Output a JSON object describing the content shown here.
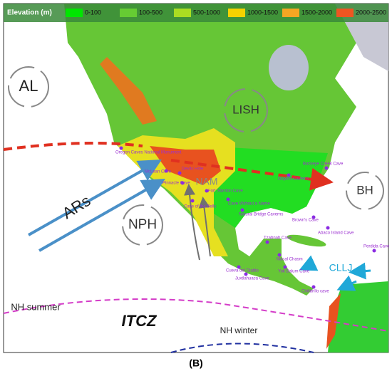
{
  "legend": {
    "title": "Elevation (m)",
    "items": [
      "0-100",
      "100-500",
      "500-1000",
      "1000-1500",
      "1500-2000",
      "2000-2500"
    ]
  },
  "labels": [
    "AL",
    "LISH",
    "BH",
    "NPH",
    "ARs",
    "NAM",
    "CLLJ",
    "ITCZ",
    "NH summer",
    "NH winter"
  ],
  "caves": [
    "Oregon Caves National Monument",
    "McLean Cave",
    "Devils Hole",
    "Pinnacle Cave",
    "Fort Stanton Cave",
    "Cave of the Bells",
    "Cave Without a Name",
    "Natural Bridge Caverns",
    "Buckeye Creek Cave",
    "Dupont Caverns",
    "Brown's Cave",
    "Abaco Island Cave",
    "Tzabnah Cave",
    "Macal Chasm",
    "Cueva del Diablo",
    "Juxtlahuaca Cave",
    "Yok Balum Cave",
    "Chilibrillo cave",
    "Perdida Cave"
  ],
  "caption": "(B)"
}
